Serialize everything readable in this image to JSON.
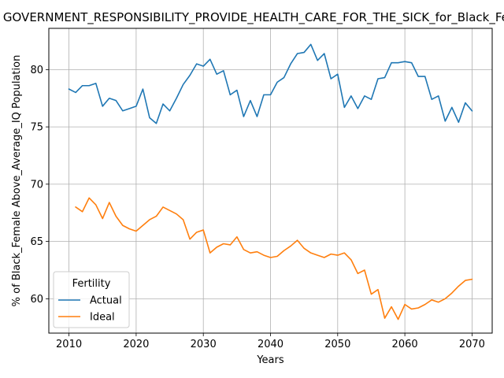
{
  "chart_data": {
    "type": "line",
    "title": "GOVERNMENT_RESPONSIBILITY_PROVIDE_HEALTH_CARE_FOR_THE_SICK_for_Black_Female",
    "xlabel": "Years",
    "ylabel": "% of Black_Female Above_Average_IQ Population",
    "xlim": [
      2007,
      2073
    ],
    "ylim": [
      57.0,
      83.6
    ],
    "xticks": [
      2010,
      2020,
      2030,
      2040,
      2050,
      2060,
      2070
    ],
    "yticks": [
      60,
      65,
      70,
      75,
      80
    ],
    "grid": true,
    "legend": {
      "title": "Fertility",
      "placement": "lower-left"
    },
    "series": [
      {
        "name": "Actual",
        "color": "#1f77b4",
        "x": [
          2010,
          2011,
          2012,
          2013,
          2014,
          2015,
          2016,
          2017,
          2018,
          2019,
          2020,
          2021,
          2022,
          2023,
          2024,
          2025,
          2026,
          2027,
          2028,
          2029,
          2030,
          2031,
          2032,
          2033,
          2034,
          2035,
          2036,
          2037,
          2038,
          2039,
          2040,
          2041,
          2042,
          2043,
          2044,
          2045,
          2046,
          2047,
          2048,
          2049,
          2050,
          2051,
          2052,
          2053,
          2054,
          2055,
          2056,
          2057,
          2058,
          2059,
          2060,
          2061,
          2062,
          2063,
          2064,
          2065,
          2066,
          2067,
          2068,
          2069,
          2070
        ],
        "values": [
          78.3,
          78.0,
          78.6,
          78.6,
          78.8,
          76.8,
          77.5,
          77.3,
          76.4,
          76.6,
          76.8,
          78.3,
          75.8,
          75.3,
          77.0,
          76.4,
          77.5,
          78.7,
          79.5,
          80.5,
          80.3,
          80.9,
          79.6,
          79.9,
          77.8,
          78.2,
          75.9,
          77.3,
          75.9,
          77.8,
          77.8,
          78.9,
          79.3,
          80.5,
          81.4,
          81.5,
          82.2,
          80.8,
          81.4,
          79.2,
          79.6,
          76.7,
          77.7,
          76.6,
          77.7,
          77.4,
          79.2,
          79.3,
          80.6,
          80.6,
          80.7,
          80.6,
          79.4,
          79.4,
          77.4,
          77.7,
          75.5,
          76.7,
          75.4,
          77.1,
          76.4
        ]
      },
      {
        "name": "Ideal",
        "color": "#ff7f0e",
        "x": [
          2011,
          2012,
          2013,
          2014,
          2015,
          2016,
          2017,
          2018,
          2019,
          2020,
          2021,
          2022,
          2023,
          2024,
          2025,
          2026,
          2027,
          2028,
          2029,
          2030,
          2031,
          2032,
          2033,
          2034,
          2035,
          2036,
          2037,
          2038,
          2039,
          2040,
          2041,
          2042,
          2043,
          2044,
          2045,
          2046,
          2047,
          2048,
          2049,
          2050,
          2051,
          2052,
          2053,
          2054,
          2055,
          2056,
          2057,
          2058,
          2059,
          2060,
          2061,
          2062,
          2063,
          2064,
          2065,
          2066,
          2067,
          2068,
          2069,
          2070
        ],
        "values": [
          68.0,
          67.6,
          68.8,
          68.2,
          67.0,
          68.4,
          67.2,
          66.4,
          66.1,
          65.9,
          66.4,
          66.9,
          67.2,
          68.0,
          67.7,
          67.4,
          66.9,
          65.2,
          65.8,
          66.0,
          64.0,
          64.5,
          64.8,
          64.7,
          65.4,
          64.3,
          64.0,
          64.1,
          63.8,
          63.6,
          63.7,
          64.2,
          64.6,
          65.1,
          64.4,
          64.0,
          63.8,
          63.6,
          63.9,
          63.8,
          64.0,
          63.4,
          62.2,
          62.5,
          60.4,
          60.8,
          58.3,
          59.3,
          58.2,
          59.5,
          59.1,
          59.2,
          59.5,
          59.9,
          59.7,
          60.0,
          60.5,
          61.1,
          61.6,
          61.7
        ]
      }
    ]
  }
}
